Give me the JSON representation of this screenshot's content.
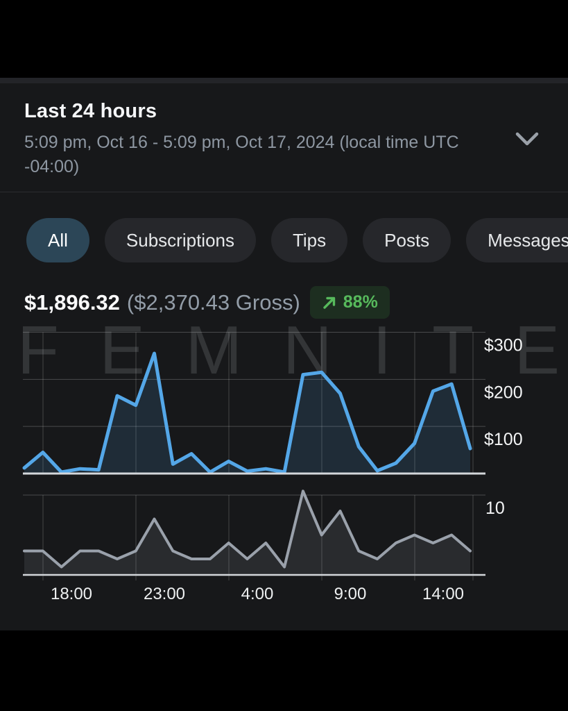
{
  "header": {
    "title": "Last 24 hours",
    "subtitle": "5:09 pm, Oct 16 - 5:09 pm, Oct 17, 2024 (local time UTC -04:00)"
  },
  "filters": {
    "items": [
      {
        "label": "All",
        "selected": true
      },
      {
        "label": "Subscriptions",
        "selected": false
      },
      {
        "label": "Tips",
        "selected": false
      },
      {
        "label": "Posts",
        "selected": false
      },
      {
        "label": "Messages",
        "selected": false
      }
    ]
  },
  "summary": {
    "net": "$1,896.32",
    "gross": "($2,370.43 Gross)",
    "change": "88%",
    "trend_icon": "arrow-up-right-icon",
    "badge_bg": "#1d2e20",
    "badge_green": "#57ba5c"
  },
  "watermark": "FEMNITE",
  "chart_data": [
    {
      "type": "area",
      "name": "earnings-by-hour",
      "title": "",
      "xlabel": "",
      "ylabel": "USD",
      "ylim": [
        0,
        300
      ],
      "grid": true,
      "legend": "none",
      "line_color": "#54a7e8",
      "yticks": [
        {
          "value": 300,
          "label": "$300"
        },
        {
          "value": 200,
          "label": "$200"
        },
        {
          "value": 100,
          "label": "$100"
        }
      ],
      "x": [
        "17:00",
        "18:00",
        "19:00",
        "20:00",
        "21:00",
        "22:00",
        "23:00",
        "0:00",
        "1:00",
        "2:00",
        "3:00",
        "4:00",
        "5:00",
        "6:00",
        "7:00",
        "8:00",
        "9:00",
        "10:00",
        "11:00",
        "12:00",
        "13:00",
        "14:00",
        "15:00",
        "16:00",
        "17:00"
      ],
      "values": [
        12,
        45,
        3,
        10,
        8,
        165,
        145,
        255,
        20,
        42,
        3,
        26,
        5,
        10,
        3,
        210,
        215,
        170,
        57,
        6,
        22,
        64,
        175,
        190,
        53
      ],
      "x_axis_labels": []
    },
    {
      "type": "area",
      "name": "transactions-by-hour",
      "title": "",
      "xlabel": "",
      "ylabel": "count",
      "ylim": [
        0,
        11
      ],
      "grid": true,
      "legend": "none",
      "line_color": "#9aa1ab",
      "yticks": [
        {
          "value": 10,
          "label": "10"
        }
      ],
      "x": [
        "17:00",
        "18:00",
        "19:00",
        "20:00",
        "21:00",
        "22:00",
        "23:00",
        "0:00",
        "1:00",
        "2:00",
        "3:00",
        "4:00",
        "5:00",
        "6:00",
        "7:00",
        "8:00",
        "9:00",
        "10:00",
        "11:00",
        "12:00",
        "13:00",
        "14:00",
        "15:00",
        "16:00",
        "17:00"
      ],
      "values": [
        3,
        3,
        1,
        3,
        3,
        2,
        3,
        7,
        3,
        2,
        2,
        4,
        2,
        4,
        1,
        10.5,
        5,
        8,
        3,
        2,
        4,
        5,
        4,
        5,
        3
      ],
      "x_axis_labels": [
        "18:00",
        "23:00",
        "4:00",
        "9:00",
        "14:00"
      ]
    }
  ]
}
